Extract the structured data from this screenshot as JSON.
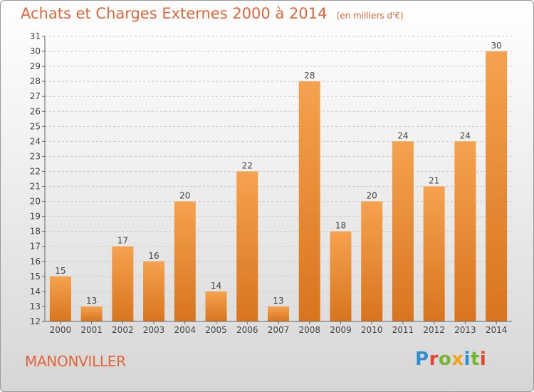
{
  "header": {
    "title": "Achats et Charges Externes 2000 à 2014",
    "subtitle": "(en milliers d'€)"
  },
  "footer": {
    "commune": "MANONVILLER",
    "brand": "Proxiti",
    "brand_colors": [
      "#2e8fd0",
      "#e5452b",
      "#74b72e",
      "#f2a31b",
      "#2e8fd0",
      "#74b72e",
      "#e5452b"
    ]
  },
  "chart_data": {
    "type": "bar",
    "categories": [
      "2000",
      "2001",
      "2002",
      "2003",
      "2004",
      "2005",
      "2006",
      "2007",
      "2008",
      "2009",
      "2010",
      "2011",
      "2012",
      "2013",
      "2014"
    ],
    "values": [
      15,
      13,
      17,
      16,
      20,
      14,
      22,
      13,
      28,
      18,
      20,
      24,
      21,
      24,
      30
    ],
    "ylim": [
      12,
      31
    ],
    "yticks": [
      12,
      13,
      14,
      15,
      16,
      17,
      18,
      19,
      20,
      21,
      22,
      23,
      24,
      25,
      26,
      27,
      28,
      29,
      30,
      31
    ],
    "grid": "horizontal dashed",
    "bar_color_top": "#f5a24e",
    "bar_color_bottom": "#d9741e"
  }
}
